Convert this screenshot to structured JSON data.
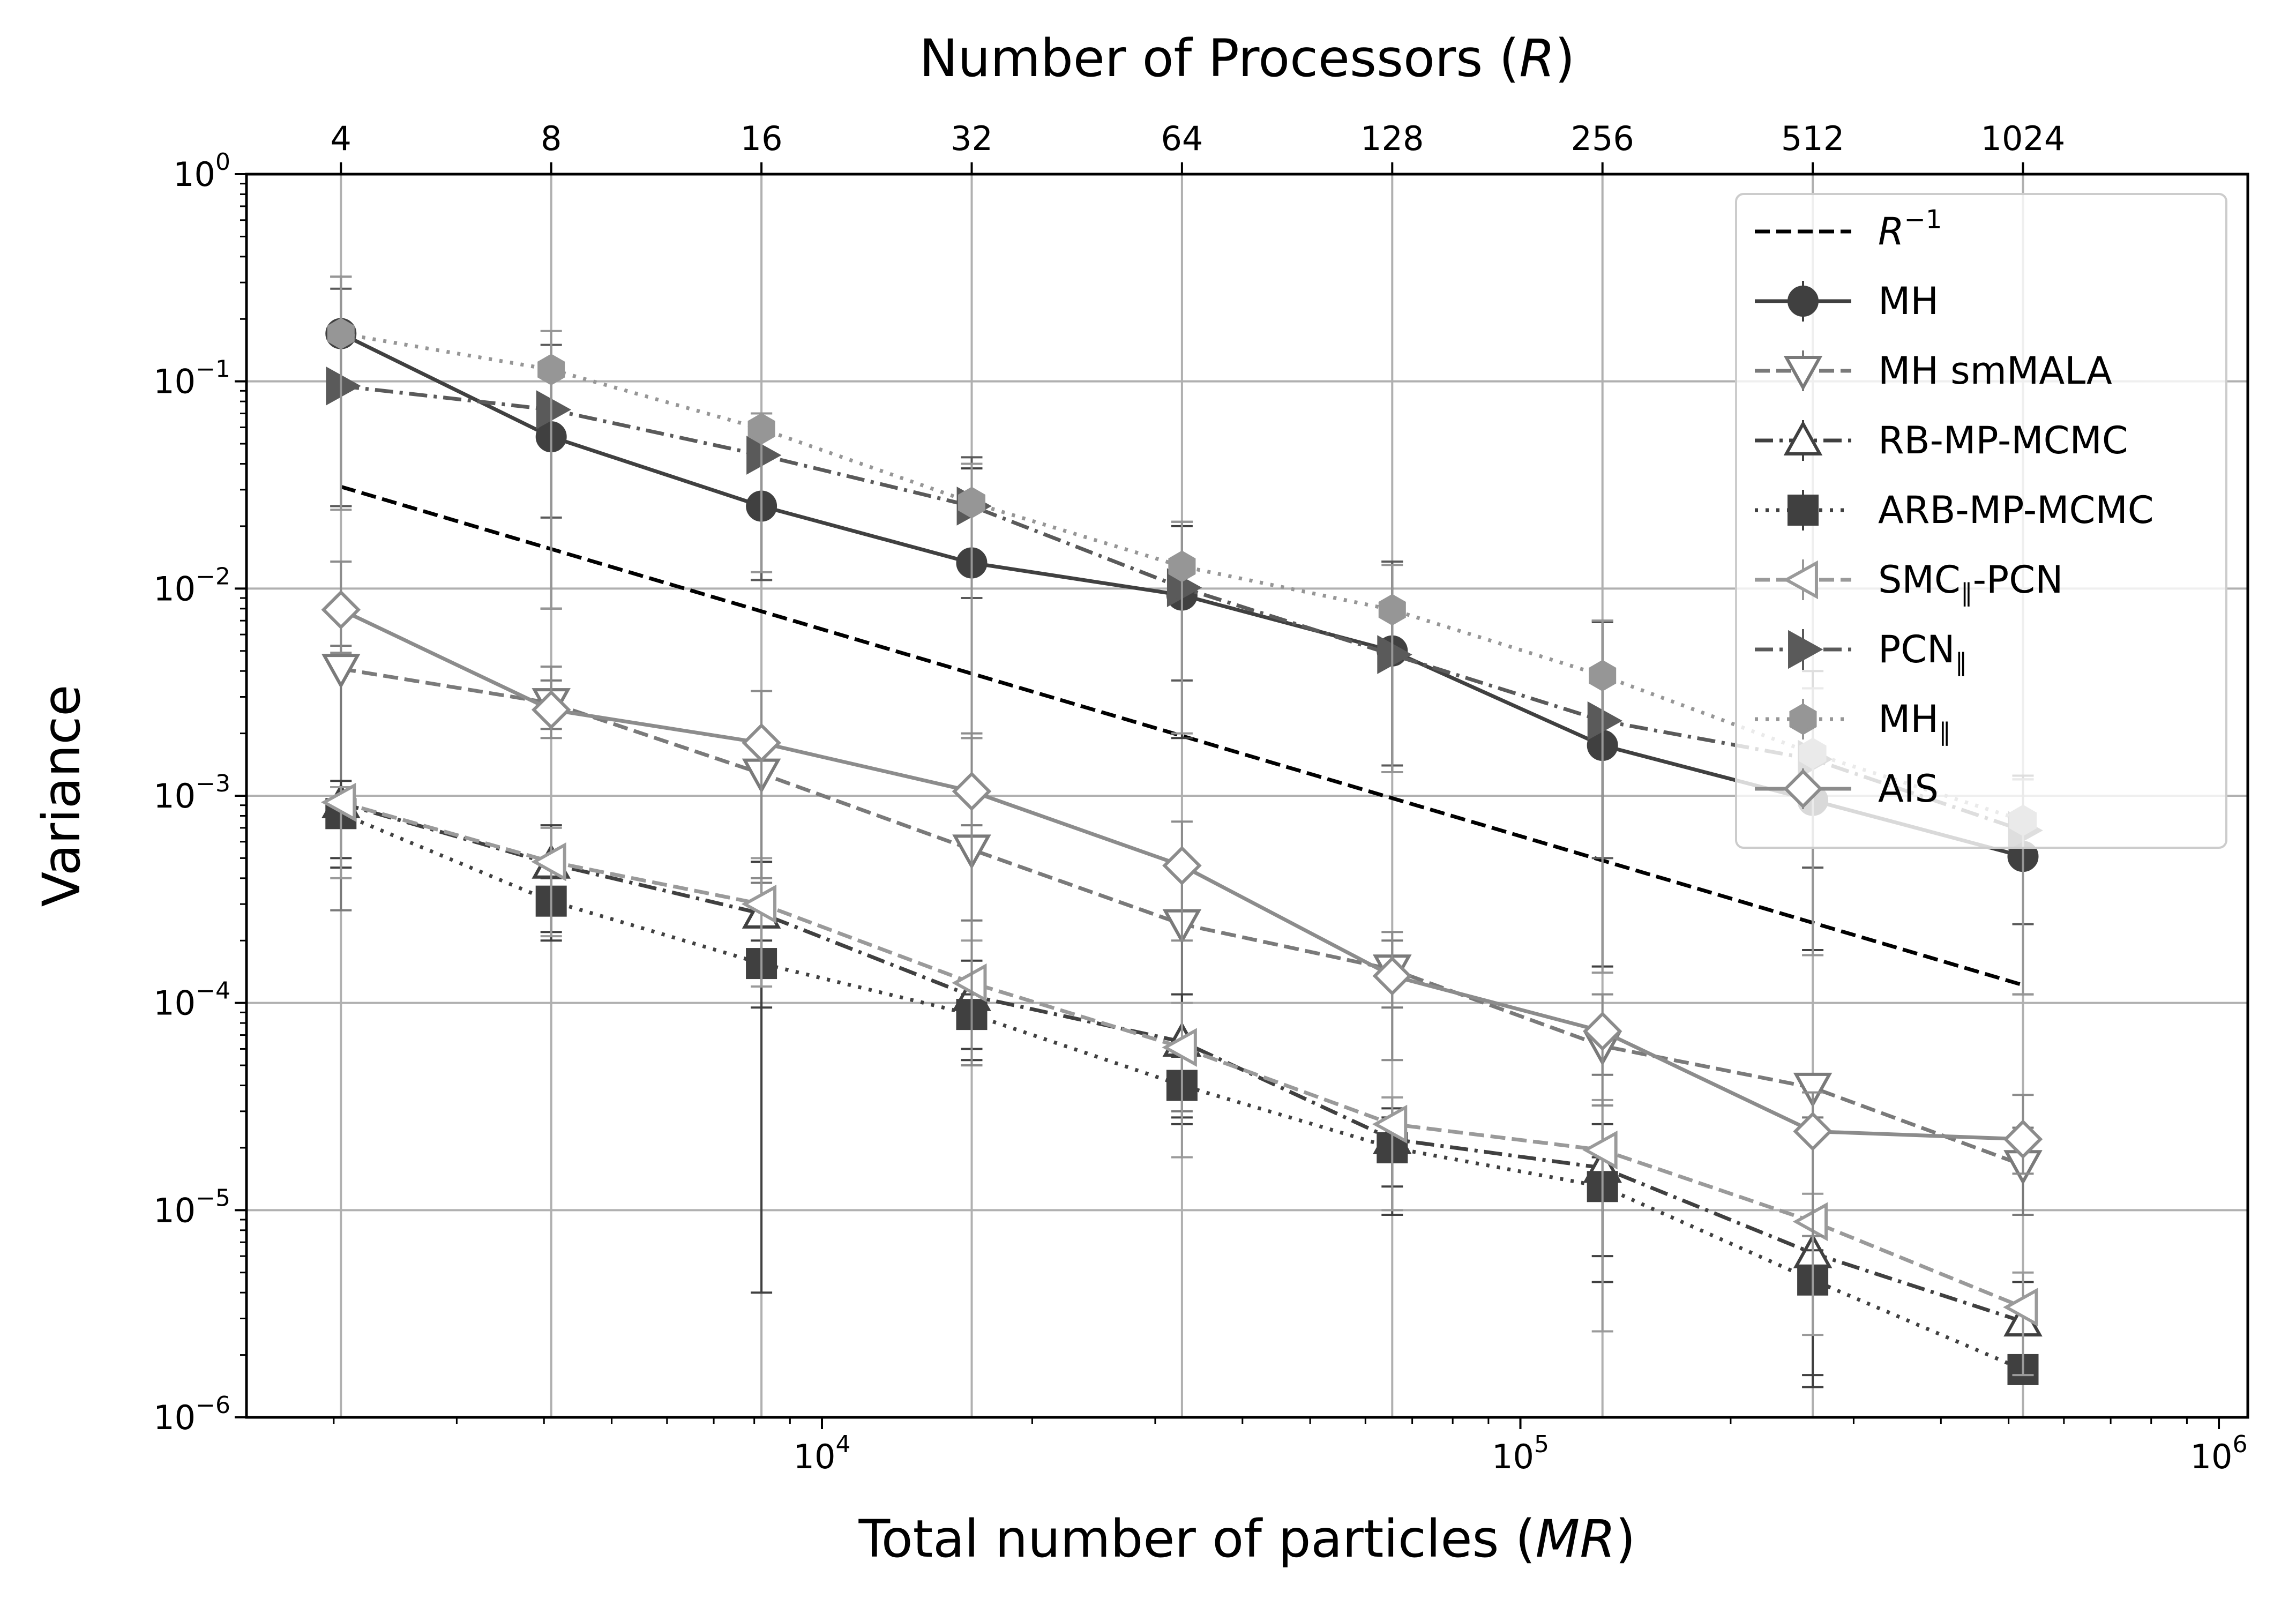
{
  "chart_data": {
    "type": "line",
    "x_scale": "log",
    "y_scale": "log",
    "xlim": [
      1500,
      1100000
    ],
    "ylim": [
      1e-06,
      1
    ],
    "grid": true,
    "legend_position": "top-right",
    "xlabel_prefix": "Total number of particles (",
    "xlabel_var": "MR",
    "xlabel_suffix": ")",
    "ylabel": "Variance",
    "top_axis_label_prefix": "Number of Processors (",
    "top_axis_label_var": "R",
    "top_axis_label_suffix": ")",
    "x_tick_labels": [
      {
        "value": 10000,
        "base": "10",
        "exp": "4"
      },
      {
        "value": 100000,
        "base": "10",
        "exp": "5"
      },
      {
        "value": 1000000,
        "base": "10",
        "exp": "6"
      }
    ],
    "y_tick_labels": [
      {
        "value": 1,
        "base": "10",
        "exp": "0"
      },
      {
        "value": 0.1,
        "base": "10",
        "exp": "−1"
      },
      {
        "value": 0.01,
        "base": "10",
        "exp": "−2"
      },
      {
        "value": 0.001,
        "base": "10",
        "exp": "−3"
      },
      {
        "value": 0.0001,
        "base": "10",
        "exp": "−4"
      },
      {
        "value": 1e-05,
        "base": "10",
        "exp": "−5"
      },
      {
        "value": 1e-06,
        "base": "10",
        "exp": "−6"
      }
    ],
    "top_ticks": [
      {
        "label": "4",
        "x": 2048
      },
      {
        "label": "8",
        "x": 4096
      },
      {
        "label": "16",
        "x": 8192
      },
      {
        "label": "32",
        "x": 16384
      },
      {
        "label": "64",
        "x": 32768
      },
      {
        "label": "128",
        "x": 65536
      },
      {
        "label": "256",
        "x": 131072
      },
      {
        "label": "512",
        "x": 262144
      },
      {
        "label": "1024",
        "x": 524288
      }
    ],
    "x": [
      2048,
      4096,
      8192,
      16384,
      32768,
      65536,
      131072,
      262144,
      524288
    ],
    "reference_line": {
      "name_base": "R",
      "name_exp": "−1",
      "x": [
        2048,
        524288
      ],
      "values": [
        0.031,
        0.000122
      ],
      "color": "#000000",
      "dash": "dashed"
    },
    "series": [
      {
        "name": "MH",
        "color": "#404040",
        "dash": "solid",
        "marker": "circle",
        "fill": "#404040",
        "values": [
          0.17,
          0.054,
          0.025,
          0.0133,
          0.0093,
          0.005,
          0.00175,
          0.00095,
          0.00051
        ],
        "err_low": [
          0.025,
          0.008,
          0.011,
          0.0019,
          0.0019,
          0.0013,
          0.00015,
          0.00018,
          0.00011
        ],
        "err_high": [
          0.32,
          0.11,
          0.07,
          0.038,
          0.02,
          0.0135,
          0.0069,
          0.0033,
          0.0012
        ]
      },
      {
        "name": "MH smMALA",
        "color": "#7a7a7a",
        "dash": "dashed",
        "marker": "tri-down",
        "fill": "#ffffff",
        "values": [
          0.0041,
          0.0028,
          0.00128,
          0.00055,
          0.00024,
          0.000145,
          6.2e-05,
          3.9e-05,
          1.65e-05
        ],
        "err_low": [
          0.00028,
          0.0021,
          0.00038,
          0.00025,
          3e-05,
          9.5e-05,
          4.5e-05,
          2.8e-05,
          9.5e-06
        ],
        "err_high": [
          0.0053,
          0.0036,
          0.0018,
          0.00072,
          0.00042,
          0.0002,
          7.5e-05,
          4.5e-05,
          2.5e-05
        ]
      },
      {
        "name": "RB-MP-MCMC",
        "color": "#404040",
        "dash": "dashdot",
        "marker": "tri-up",
        "fill": "#ffffff",
        "values": [
          0.00092,
          0.00047,
          0.00027,
          0.000108,
          6.5e-05,
          2.2e-05,
          1.6e-05,
          6.2e-06,
          2.9e-06
        ],
        "err_low": [
          0.00045,
          0.00022,
          4e-06,
          6e-05,
          2.6e-05,
          1.3e-05,
          6e-06,
          1.6e-06,
          1.5e-06
        ],
        "err_high": [
          0.00118,
          0.00072,
          0.00048,
          0.00016,
          0.00011,
          3.1e-05,
          2.6e-05,
          8.5e-06,
          4.5e-06
        ]
      },
      {
        "name": "ARB-MP-MCMC",
        "color": "#404040",
        "dash": "dotted",
        "marker": "square",
        "fill": "#404040",
        "values": [
          0.00082,
          0.00031,
          0.000155,
          8.8e-05,
          4e-05,
          2e-05,
          1.3e-05,
          4.6e-06,
          1.7e-06
        ],
        "err_low": [
          0.0005,
          0.0002,
          9.5e-05,
          5.3e-05,
          2.8e-05,
          9.5e-06,
          4.5e-06,
          1.4e-06,
          1.5e-06
        ],
        "err_high": [
          0.0011,
          0.0004,
          0.0002,
          0.00011,
          5.5e-05,
          2.8e-05,
          1.8e-05,
          6.4e-06,
          1.9e-06
        ]
      },
      {
        "name_main": "SMC",
        "name_sub": "∥",
        "name_after": "-PCN",
        "color": "#9a9a9a",
        "dash": "dashed",
        "marker": "tri-left",
        "fill": "#ffffff",
        "values": [
          0.00093,
          0.00048,
          0.0003,
          0.000125,
          6.1e-05,
          2.6e-05,
          1.95e-05,
          8.8e-06,
          3.4e-06
        ],
        "err_low": [
          0.0004,
          0.00021,
          0.00012,
          5e-05,
          1.8e-05,
          1e-05,
          2.6e-06,
          2.5e-06,
          1.6e-06
        ],
        "err_high": [
          0.0011,
          0.0007,
          0.0005,
          0.0002,
          0.0001,
          3.5e-05,
          3.4e-05,
          1.2e-05,
          5e-06
        ]
      },
      {
        "name_main": "PCN",
        "name_sub": "∥",
        "name_after": "",
        "color": "#5a5a5a",
        "dash": "dashdot",
        "marker": "tri-right",
        "fill": "#5a5a5a",
        "values": [
          0.095,
          0.073,
          0.044,
          0.025,
          0.0101,
          0.0048,
          0.0023,
          0.0015,
          0.00068
        ],
        "err_low": [
          0.025,
          0.022,
          0.011,
          0.009,
          0.0036,
          0.0014,
          0.0005,
          0.00045,
          0.00024
        ],
        "err_high": [
          0.28,
          0.15,
          0.065,
          0.043,
          0.021,
          0.0135,
          0.007,
          0.004,
          0.00125
        ]
      },
      {
        "name_main": "MH",
        "name_sub": "∥",
        "name_after": "",
        "color": "#969696",
        "dash": "dotted",
        "marker": "hexagon",
        "fill": "#969696",
        "values": [
          0.17,
          0.114,
          0.059,
          0.026,
          0.0128,
          0.0079,
          0.0038,
          0.0016,
          0.00076
        ],
        "err_low": [
          0.024,
          0.008,
          0.012,
          0.0019,
          0.002,
          0.0013,
          0.00014,
          0.00017,
          0.00011
        ],
        "err_high": [
          0.32,
          0.175,
          0.07,
          0.04,
          0.021,
          0.013,
          0.007,
          0.0033,
          0.0012
        ]
      },
      {
        "name": "AIS",
        "color": "#8c8c8c",
        "dash": "solid",
        "marker": "diamond",
        "fill": "#ffffff",
        "values": [
          0.0079,
          0.0026,
          0.0018,
          0.00105,
          0.00046,
          0.000135,
          7.3e-05,
          2.4e-05,
          2.2e-05
        ],
        "err_low": [
          0.0049,
          0.0019,
          0.0004,
          5e-05,
          0.0002,
          5.3e-05,
          3.2e-05,
          7.5e-06,
          1.5e-05
        ],
        "err_high": [
          0.0135,
          0.0042,
          0.0032,
          0.002,
          0.00075,
          0.00022,
          0.00011,
          3.7e-05,
          3.6e-05
        ]
      }
    ]
  }
}
